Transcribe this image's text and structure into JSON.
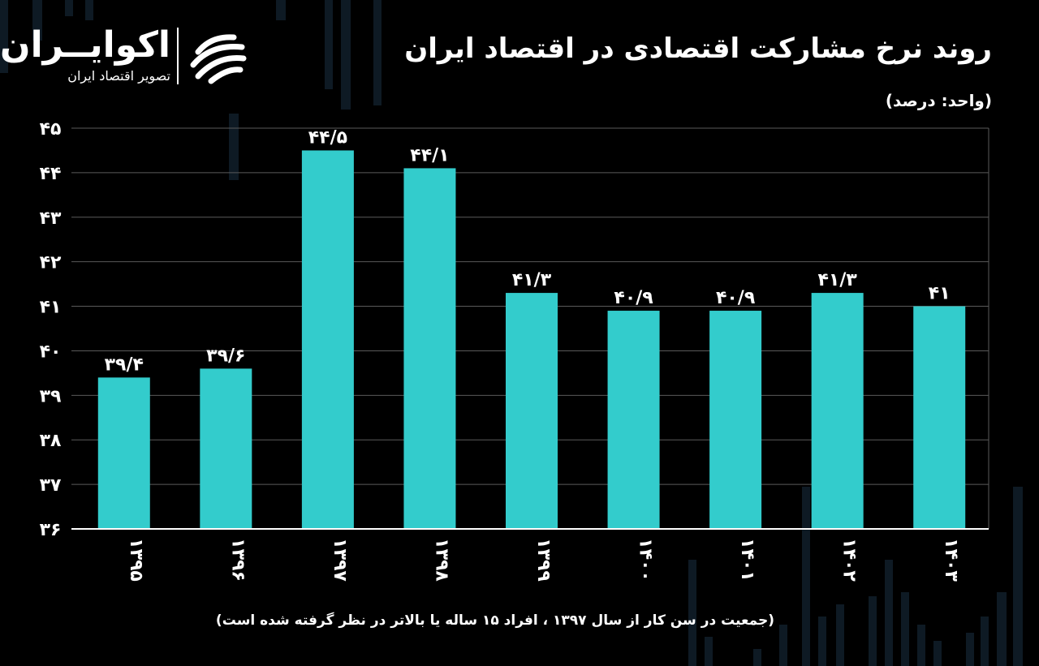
{
  "brand": {
    "name": "اکوایــران",
    "tagline": "تصویر اقتصاد ایران"
  },
  "header": {
    "title": "روند نرخ مشارکت اقتصادی در اقتصاد ایران",
    "unit": "(واحد: درصد)"
  },
  "footnote": "(جمعیت در سن کار از سال ۱۳۹۷ ، افراد ۱۵ ساله یا بالاتر در نظر گرفته شده است)",
  "colors": {
    "background": "#000000",
    "bar": "#33cccc",
    "grid": "#5a5a5a",
    "text": "#ffffff"
  },
  "chart_data": {
    "type": "bar",
    "categories": [
      "۱۳۹۵",
      "۱۳۹۶",
      "۱۳۹۷",
      "۱۳۹۸",
      "۱۳۹۹",
      "۱۴۰۰",
      "۱۴۰۱",
      "۱۴۰۲",
      "۱۴۰۳"
    ],
    "values": [
      39.4,
      39.6,
      44.5,
      44.1,
      41.3,
      40.9,
      40.9,
      41.3,
      41
    ],
    "value_labels": [
      "۳۹/۴",
      "۳۹/۶",
      "۴۴/۵",
      "۴۴/۱",
      "۴۱/۳",
      "۴۰/۹",
      "۴۰/۹",
      "۴۱/۳",
      "۴۱"
    ],
    "yticks": [
      36,
      37,
      38,
      39,
      40,
      41,
      42,
      43,
      44,
      45
    ],
    "ytick_labels": [
      "۳۶",
      "۳۷",
      "۳۸",
      "۳۹",
      "۴۰",
      "۴۱",
      "۴۲",
      "۴۳",
      "۴۴",
      "۴۵"
    ],
    "ylim": [
      36,
      45
    ],
    "grid": true,
    "title": "روند نرخ مشارکت اقتصادی در اقتصاد ایران",
    "xlabel": "",
    "ylabel": "(واحد: درصد)"
  }
}
